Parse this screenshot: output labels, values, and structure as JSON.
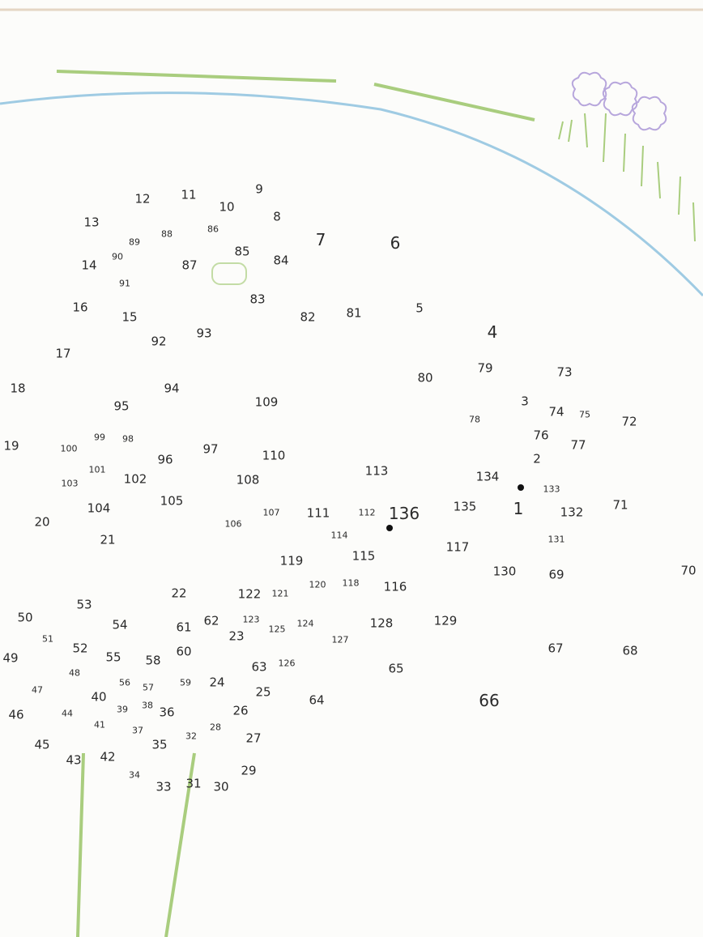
{
  "colors": {
    "paper": "#fcfcfa",
    "sky_line": "#9fcbe3",
    "grass": "#a9cd7e",
    "flower": "#b7a6dc",
    "ink": "#2a2a2a"
  },
  "labels": [
    "1",
    "2",
    "3",
    "4",
    "5",
    "6",
    "7",
    "8",
    "9",
    "10",
    "11",
    "12",
    "13",
    "14",
    "15",
    "16",
    "17",
    "18",
    "19",
    "20",
    "21",
    "22",
    "23",
    "24",
    "25",
    "26",
    "27",
    "28",
    "29",
    "30",
    "31",
    "32",
    "33",
    "34",
    "35",
    "36",
    "37",
    "38",
    "39",
    "40",
    "41",
    "42",
    "43",
    "44",
    "45",
    "46",
    "47",
    "48",
    "49",
    "50",
    "51",
    "52",
    "53",
    "54",
    "55",
    "56",
    "57",
    "58",
    "59",
    "60",
    "61",
    "62",
    "63",
    "64",
    "65",
    "66",
    "67",
    "68",
    "69",
    "70",
    "71",
    "72",
    "73",
    "74",
    "75",
    "76",
    "77",
    "78",
    "79",
    "80",
    "81",
    "82",
    "83",
    "84",
    "85",
    "86",
    "87",
    "88",
    "89",
    "90",
    "91",
    "92",
    "93",
    "94",
    "95",
    "96",
    "97",
    "98",
    "99",
    "100",
    "101",
    "102",
    "103",
    "104",
    "105",
    "106",
    "107",
    "108",
    "109",
    "110",
    "111",
    "112",
    "113",
    "114",
    "115",
    "116",
    "117",
    "118",
    "119",
    "120",
    "121",
    "122",
    "123",
    "124",
    "125",
    "126",
    "127",
    "128",
    "129",
    "130",
    "131",
    "132",
    "133",
    "134",
    "135",
    "136"
  ]
}
